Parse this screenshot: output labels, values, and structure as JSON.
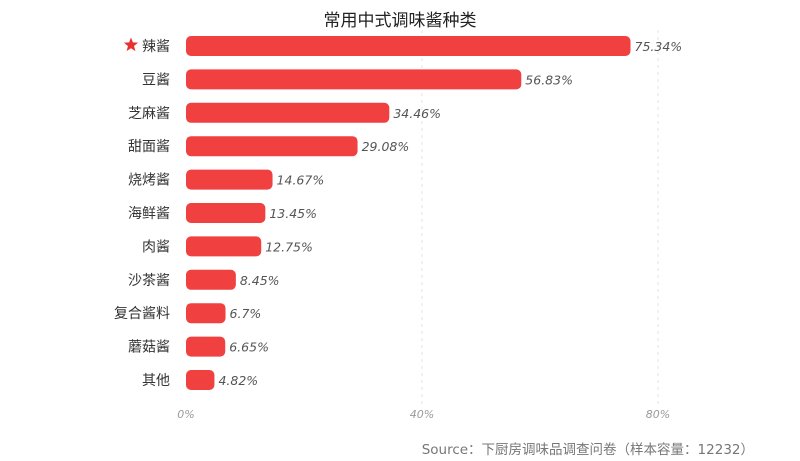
{
  "chart_data": {
    "type": "bar",
    "orientation": "horizontal",
    "title": "常用中式调味酱种类",
    "categories": [
      "辣酱",
      "豆酱",
      "芝麻酱",
      "甜面酱",
      "烧烤酱",
      "海鲜酱",
      "肉酱",
      "沙茶酱",
      "复合酱料",
      "蘑菇酱",
      "其他"
    ],
    "values": [
      75.34,
      56.83,
      34.46,
      29.08,
      14.67,
      13.45,
      12.75,
      8.45,
      6.7,
      6.65,
      4.82
    ],
    "value_labels": [
      "75.34%",
      "56.83%",
      "34.46%",
      "29.08%",
      "14.67%",
      "13.45%",
      "12.75%",
      "8.45%",
      "6.7%",
      "6.65%",
      "4.82%"
    ],
    "highlight_category": "辣酱",
    "highlight_icon": "star-icon",
    "xlim": [
      0,
      80
    ],
    "xticks": [
      0,
      40,
      80
    ],
    "xtick_labels": [
      "0%",
      "40%",
      "80%"
    ],
    "xlabel": "",
    "ylabel": "",
    "grid": "vertical-dashed",
    "legend": "none",
    "bar_color": "#f04040",
    "star_color": "#e8312f",
    "source": "Source：下厨房调味品调查问卷（样本容量：12232）"
  }
}
